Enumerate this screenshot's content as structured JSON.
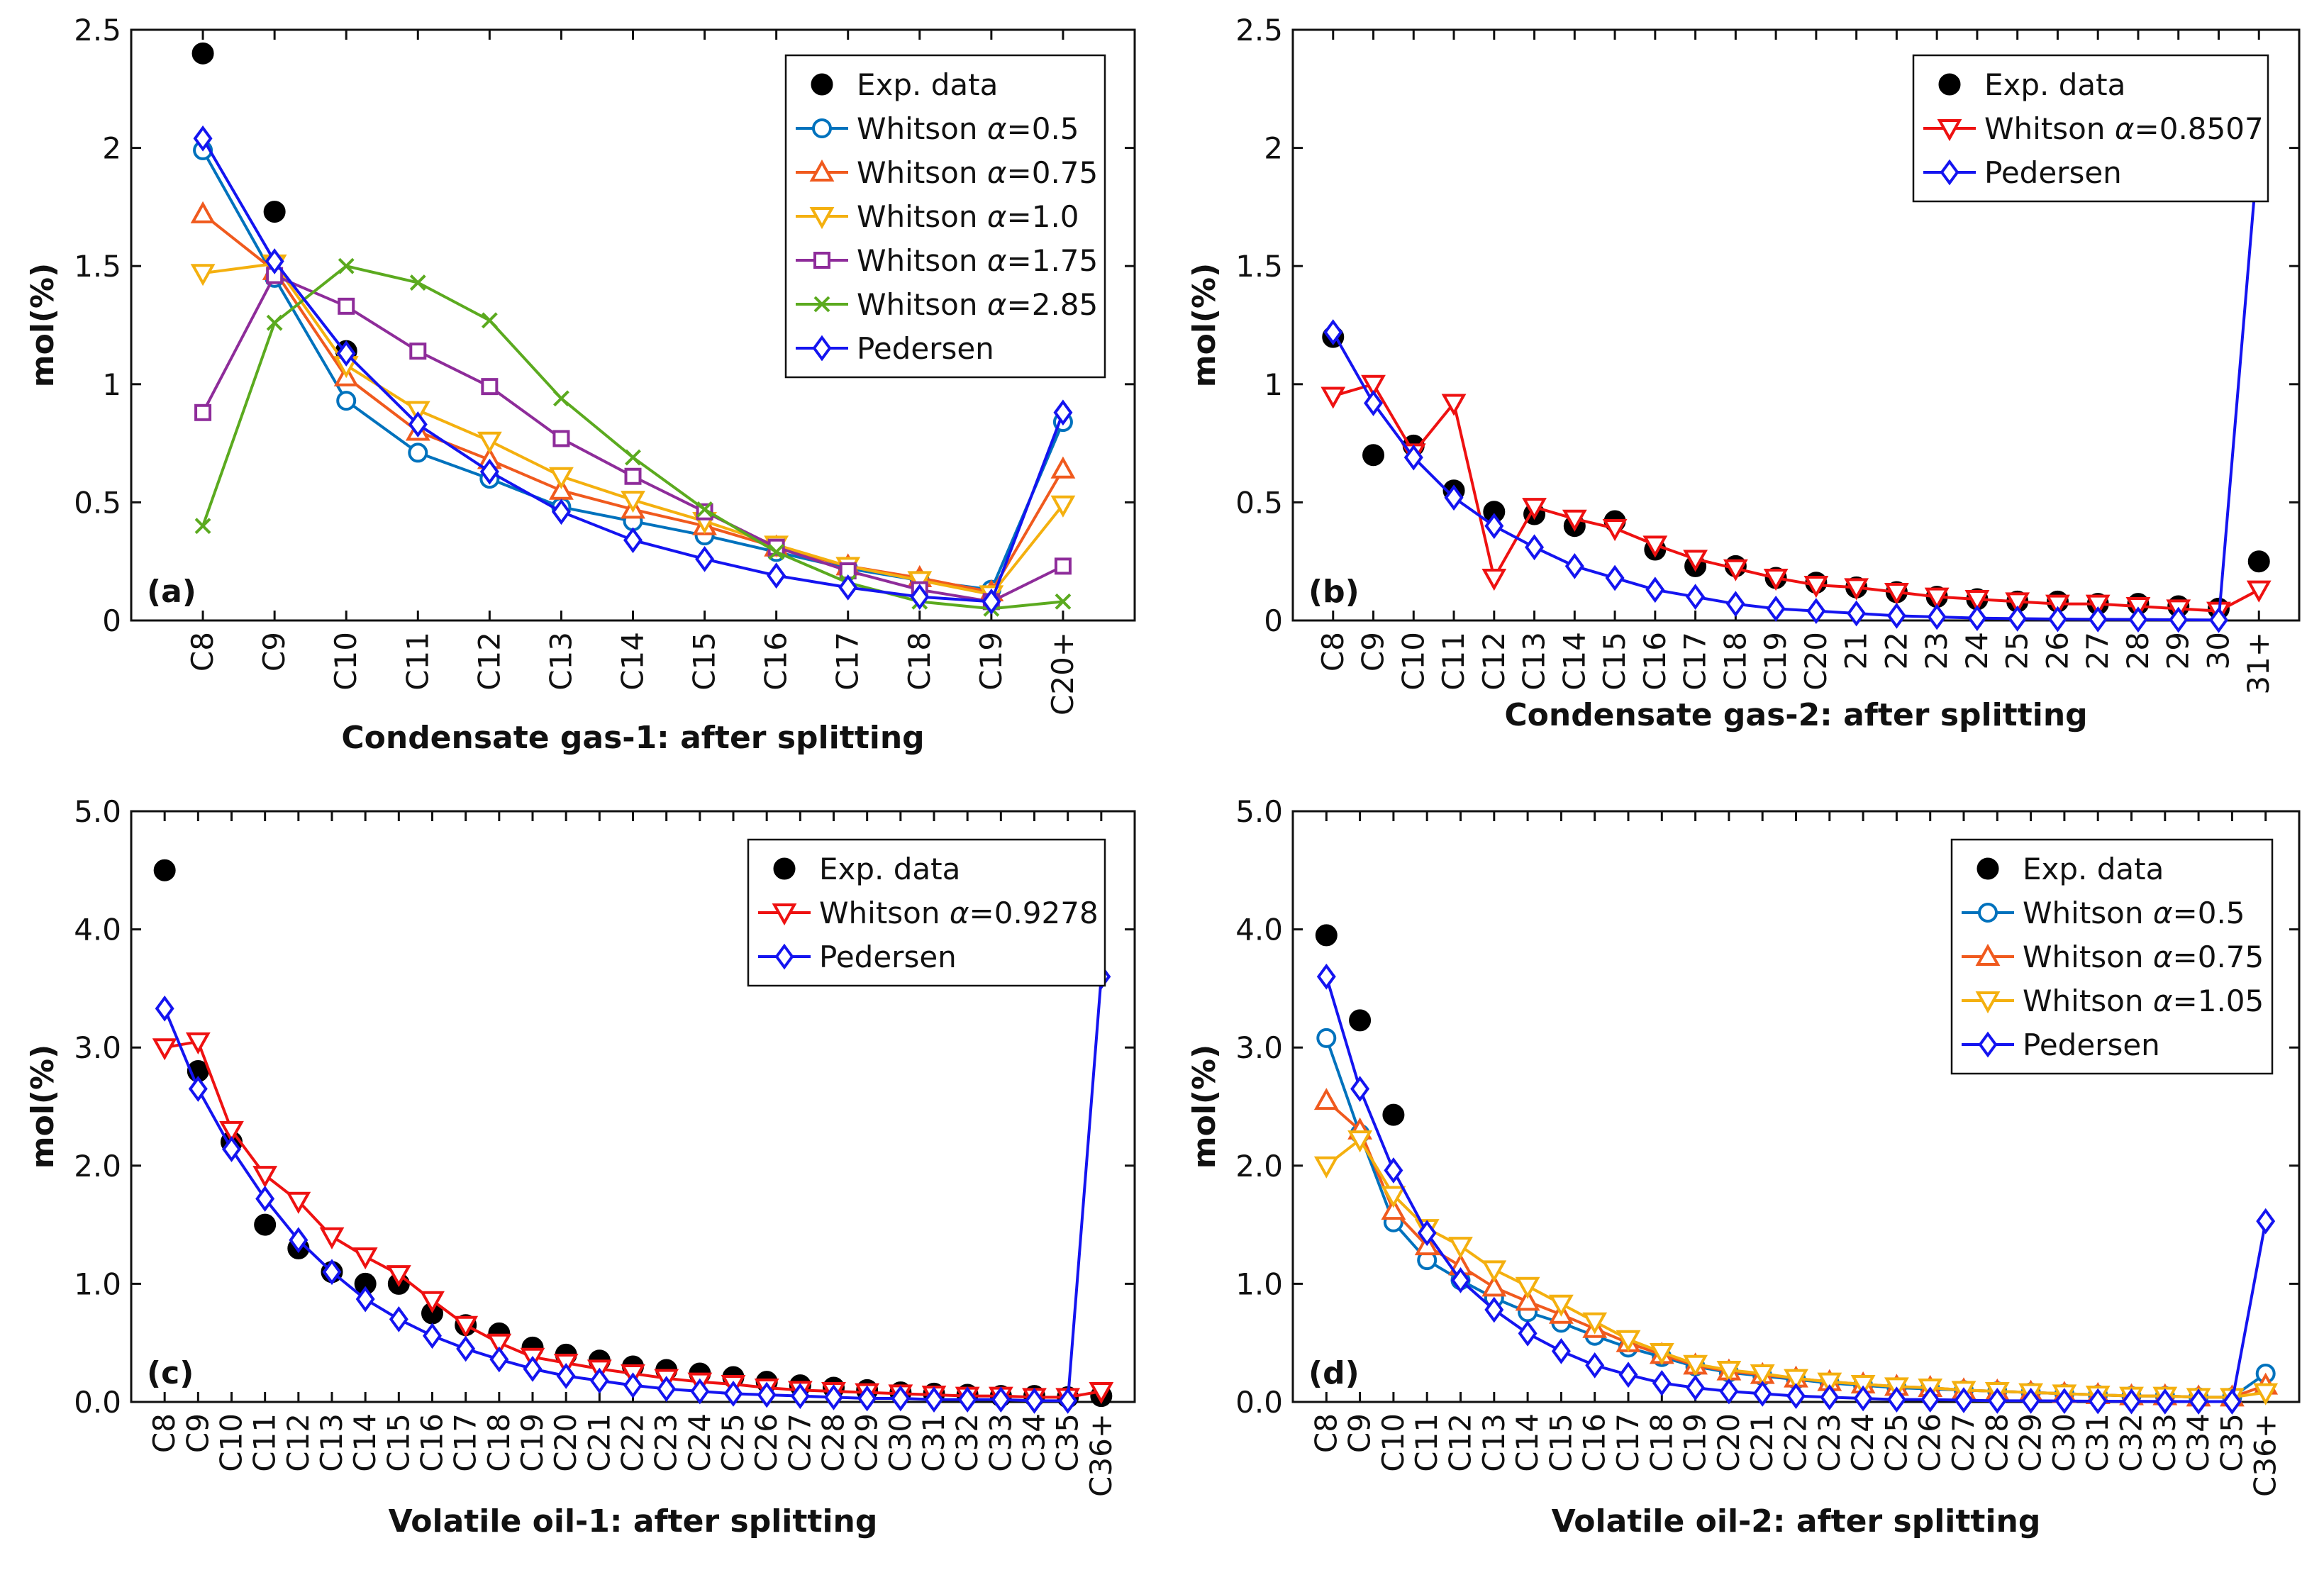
{
  "colors": {
    "exp": "#000000",
    "w05": "#0072BD",
    "w075": "#F05A1E",
    "w10": "#F4B00F",
    "w175": "#8E2C9A",
    "w285": "#5BAA1F",
    "pedersen": "#1414F0",
    "wred": "#EE1111"
  },
  "chart_data": [
    {
      "type": "line",
      "tag": "(a)",
      "xlabel": "Condensate gas-1: after splitting",
      "ylabel": "mol(%)",
      "ylim": [
        0,
        2.5
      ],
      "yticks": [
        "0",
        "0.5",
        "1",
        "1.5",
        "2",
        "2.5"
      ],
      "yticks_values": [
        0,
        0.5,
        1,
        1.5,
        2,
        2.5
      ],
      "categories": [
        "C8",
        "C9",
        "C10",
        "C11",
        "C12",
        "C13",
        "C14",
        "C15",
        "C16",
        "C17",
        "C18",
        "C19",
        "C20+"
      ],
      "legend_position": "top-right",
      "series": [
        {
          "name": "Exp. data",
          "alpha": "",
          "color_key": "exp",
          "marker": "dot",
          "line": false,
          "values": [
            2.4,
            1.73,
            1.14,
            null,
            null,
            null,
            null,
            null,
            null,
            null,
            null,
            null,
            null
          ]
        },
        {
          "name": "Whitson ",
          "alpha": "α=0.5",
          "color_key": "w05",
          "marker": "circle",
          "line": true,
          "values": [
            1.99,
            1.45,
            0.93,
            0.71,
            0.6,
            0.48,
            0.42,
            0.36,
            0.29,
            0.22,
            0.17,
            0.13,
            0.84
          ]
        },
        {
          "name": "Whitson ",
          "alpha": "α=0.75",
          "color_key": "w075",
          "marker": "tri-up",
          "line": true,
          "values": [
            1.72,
            1.48,
            1.03,
            0.8,
            0.68,
            0.55,
            0.47,
            0.4,
            0.31,
            0.23,
            0.18,
            0.12,
            0.64
          ]
        },
        {
          "name": "Whitson ",
          "alpha": "α=1.0",
          "color_key": "w10",
          "marker": "tri-down",
          "line": true,
          "values": [
            1.47,
            1.51,
            1.08,
            0.89,
            0.76,
            0.61,
            0.51,
            0.42,
            0.32,
            0.23,
            0.17,
            0.11,
            0.49
          ]
        },
        {
          "name": "Whitson ",
          "alpha": "α=1.75",
          "color_key": "w175",
          "marker": "square",
          "line": true,
          "values": [
            0.88,
            1.46,
            1.33,
            1.14,
            0.99,
            0.77,
            0.61,
            0.46,
            0.31,
            0.21,
            0.13,
            0.08,
            0.23
          ]
        },
        {
          "name": "Whitson ",
          "alpha": "α=2.85",
          "color_key": "w285",
          "marker": "x",
          "line": true,
          "values": [
            0.4,
            1.26,
            1.5,
            1.43,
            1.27,
            0.94,
            0.69,
            0.47,
            0.29,
            0.16,
            0.08,
            0.05,
            0.08
          ]
        },
        {
          "name": "Pedersen",
          "alpha": "",
          "color_key": "pedersen",
          "marker": "diamond",
          "line": true,
          "values": [
            2.04,
            1.52,
            1.13,
            0.83,
            0.63,
            0.46,
            0.34,
            0.26,
            0.19,
            0.14,
            0.1,
            0.08,
            0.88
          ]
        }
      ]
    },
    {
      "type": "line",
      "tag": "(b)",
      "xlabel": "Condensate gas-2: after splitting",
      "ylabel": "mol(%)",
      "ylim": [
        0,
        2.5
      ],
      "yticks": [
        "0",
        "0.5",
        "1",
        "1.5",
        "2",
        "2.5"
      ],
      "yticks_values": [
        0,
        0.5,
        1,
        1.5,
        2,
        2.5
      ],
      "categories": [
        "C8",
        "C9",
        "C10",
        "C11",
        "C12",
        "C13",
        "C14",
        "C15",
        "C16",
        "C17",
        "C18",
        "C19",
        "C20",
        "21",
        "22",
        "23",
        "24",
        "25",
        "26",
        "27",
        "28",
        "29",
        "30",
        "31+"
      ],
      "legend_position": "top-right",
      "series": [
        {
          "name": "Exp. data",
          "alpha": "",
          "color_key": "exp",
          "marker": "dot",
          "line": false,
          "values": [
            1.2,
            0.7,
            0.74,
            0.55,
            0.46,
            0.45,
            0.4,
            0.42,
            0.3,
            0.23,
            0.23,
            0.18,
            0.16,
            0.14,
            0.12,
            0.1,
            0.09,
            0.08,
            0.08,
            0.07,
            0.07,
            0.06,
            0.05,
            0.25
          ]
        },
        {
          "name": "Whitson ",
          "alpha": "α=0.8507",
          "color_key": "wred",
          "marker": "tri-down",
          "line": true,
          "values": [
            0.95,
            1.0,
            0.71,
            0.92,
            0.18,
            0.48,
            0.43,
            0.39,
            0.32,
            0.26,
            0.22,
            0.18,
            0.15,
            0.14,
            0.12,
            0.1,
            0.09,
            0.08,
            0.07,
            0.07,
            0.06,
            0.05,
            0.04,
            0.13
          ]
        },
        {
          "name": "Pedersen",
          "alpha": "",
          "color_key": "pedersen",
          "marker": "diamond",
          "line": true,
          "values": [
            1.22,
            0.92,
            0.69,
            0.52,
            0.4,
            0.31,
            0.23,
            0.18,
            0.13,
            0.1,
            0.07,
            0.05,
            0.04,
            0.03,
            0.02,
            0.015,
            0.01,
            0.008,
            0.006,
            0.005,
            0.004,
            0.003,
            0.002,
            2.03
          ]
        }
      ]
    },
    {
      "type": "line",
      "tag": "(c)",
      "xlabel": "Volatile oil-1: after splitting",
      "ylabel": "mol(%)",
      "ylim": [
        0,
        5.0
      ],
      "yticks": [
        "0.0",
        "1.0",
        "2.0",
        "3.0",
        "4.0",
        "5.0"
      ],
      "yticks_values": [
        0,
        1,
        2,
        3,
        4,
        5
      ],
      "categories": [
        "C8",
        "C9",
        "C10",
        "C11",
        "C12",
        "C13",
        "C14",
        "C15",
        "C16",
        "C17",
        "C18",
        "C19",
        "C20",
        "C21",
        "C22",
        "C23",
        "C24",
        "C25",
        "C26",
        "C27",
        "C28",
        "C29",
        "C30",
        "C31",
        "C32",
        "C33",
        "C34",
        "C35",
        "C36+"
      ],
      "legend_position": "top-right",
      "series": [
        {
          "name": "Exp. data",
          "alpha": "",
          "color_key": "exp",
          "marker": "dot",
          "line": false,
          "values": [
            4.5,
            2.8,
            2.2,
            1.5,
            1.3,
            1.1,
            1.0,
            1.0,
            0.75,
            0.65,
            0.58,
            0.46,
            0.4,
            0.35,
            0.3,
            0.27,
            0.24,
            0.21,
            0.17,
            0.14,
            0.12,
            0.1,
            0.08,
            0.07,
            0.06,
            0.05,
            0.05,
            0.04,
            0.05
          ]
        },
        {
          "name": "Whitson ",
          "alpha": "α=0.9278",
          "color_key": "wred",
          "marker": "tri-down",
          "line": true,
          "values": [
            3.0,
            3.05,
            2.3,
            1.92,
            1.7,
            1.4,
            1.23,
            1.08,
            0.86,
            0.65,
            0.5,
            0.38,
            0.33,
            0.28,
            0.24,
            0.2,
            0.17,
            0.15,
            0.12,
            0.1,
            0.09,
            0.08,
            0.07,
            0.06,
            0.05,
            0.05,
            0.04,
            0.04,
            0.09
          ]
        },
        {
          "name": "Pedersen",
          "alpha": "",
          "color_key": "pedersen",
          "marker": "diamond",
          "line": true,
          "values": [
            3.33,
            2.65,
            2.14,
            1.72,
            1.37,
            1.1,
            0.87,
            0.7,
            0.56,
            0.45,
            0.36,
            0.28,
            0.22,
            0.18,
            0.14,
            0.11,
            0.09,
            0.07,
            0.06,
            0.05,
            0.04,
            0.03,
            0.03,
            0.02,
            0.02,
            0.02,
            0.01,
            0.01,
            3.6
          ]
        }
      ]
    },
    {
      "type": "line",
      "tag": "(d)",
      "xlabel": "Volatile oil-2: after splitting",
      "ylabel": "mol(%)",
      "ylim": [
        0,
        5.0
      ],
      "yticks": [
        "0.0",
        "1.0",
        "2.0",
        "3.0",
        "4.0",
        "5.0"
      ],
      "yticks_values": [
        0,
        1,
        2,
        3,
        4,
        5
      ],
      "categories": [
        "C8",
        "C9",
        "C10",
        "C11",
        "C12",
        "C13",
        "C14",
        "C15",
        "C16",
        "C17",
        "C18",
        "C19",
        "C20",
        "C21",
        "C22",
        "C23",
        "C24",
        "C25",
        "C26",
        "C27",
        "C28",
        "C29",
        "C30",
        "C31",
        "C32",
        "C33",
        "C34",
        "C35",
        "C36+"
      ],
      "legend_position": "top-right",
      "series": [
        {
          "name": "Exp. data",
          "alpha": "",
          "color_key": "exp",
          "marker": "dot",
          "line": false,
          "values": [
            3.95,
            3.23,
            2.43,
            null,
            null,
            null,
            null,
            null,
            null,
            null,
            null,
            null,
            null,
            null,
            null,
            null,
            null,
            null,
            null,
            null,
            null,
            null,
            null,
            null,
            null,
            null,
            null,
            null,
            null
          ]
        },
        {
          "name": "Whitson ",
          "alpha": "α=0.5",
          "color_key": "w05",
          "marker": "circle",
          "line": true,
          "values": [
            3.08,
            2.27,
            1.52,
            1.2,
            1.03,
            0.88,
            0.76,
            0.67,
            0.56,
            0.46,
            0.38,
            0.3,
            0.25,
            0.22,
            0.19,
            0.16,
            0.14,
            0.12,
            0.11,
            0.1,
            0.09,
            0.08,
            0.07,
            0.06,
            0.05,
            0.05,
            0.04,
            0.04,
            0.24
          ]
        },
        {
          "name": "Whitson ",
          "alpha": "α=0.75",
          "color_key": "w075",
          "marker": "tri-up",
          "line": true,
          "values": [
            2.55,
            2.3,
            1.62,
            1.32,
            1.15,
            0.97,
            0.85,
            0.74,
            0.62,
            0.5,
            0.4,
            0.31,
            0.26,
            0.23,
            0.2,
            0.17,
            0.15,
            0.13,
            0.12,
            0.1,
            0.09,
            0.08,
            0.07,
            0.06,
            0.05,
            0.05,
            0.04,
            0.04,
            0.14
          ]
        },
        {
          "name": "Whitson ",
          "alpha": "α=1.05",
          "color_key": "w10",
          "marker": "tri-down",
          "line": true,
          "values": [
            2.0,
            2.22,
            1.75,
            1.47,
            1.32,
            1.12,
            0.98,
            0.83,
            0.68,
            0.53,
            0.42,
            0.32,
            0.27,
            0.24,
            0.2,
            0.17,
            0.15,
            0.13,
            0.12,
            0.1,
            0.09,
            0.08,
            0.07,
            0.06,
            0.05,
            0.05,
            0.04,
            0.04,
            0.08
          ]
        },
        {
          "name": "Pedersen",
          "alpha": "",
          "color_key": "pedersen",
          "marker": "diamond",
          "line": true,
          "values": [
            3.6,
            2.65,
            1.96,
            1.43,
            1.03,
            0.78,
            0.58,
            0.43,
            0.31,
            0.23,
            0.16,
            0.12,
            0.09,
            0.07,
            0.05,
            0.04,
            0.03,
            0.02,
            0.02,
            0.015,
            0.01,
            0.01,
            0.008,
            0.006,
            0.005,
            0.004,
            0.003,
            0.003,
            1.53
          ]
        }
      ]
    }
  ]
}
